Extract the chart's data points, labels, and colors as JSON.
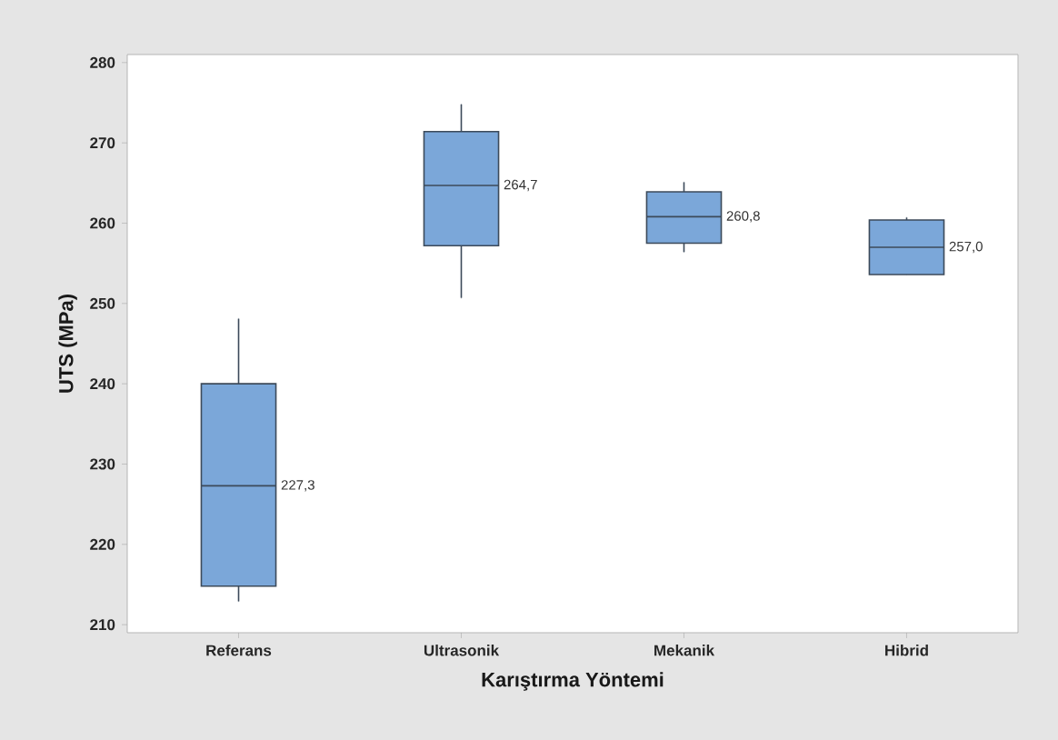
{
  "chart_data": {
    "type": "box",
    "xlabel": "Karıştırma Yöntemi",
    "ylabel": "UTS (MPa)",
    "categories": [
      "Referans",
      "Ultrasonik",
      "Mekanik",
      "Hibrid"
    ],
    "series": [
      {
        "color": "#7ba7d9",
        "boxes": [
          {
            "low": 212.9,
            "q1": 214.8,
            "median": 227.3,
            "q3": 240.0,
            "high": 248.1
          },
          {
            "low": 250.7,
            "q1": 257.2,
            "median": 264.7,
            "q3": 271.4,
            "high": 274.8
          },
          {
            "low": 256.4,
            "q1": 257.5,
            "median": 260.8,
            "q3": 263.9,
            "high": 265.1
          },
          {
            "low": 253.6,
            "q1": 253.6,
            "median": 257.0,
            "q3": 260.4,
            "high": 260.7
          }
        ],
        "value_labels": [
          "227,3",
          "264,7",
          "260,8",
          "257,0"
        ]
      }
    ],
    "ylim": [
      209,
      281
    ],
    "yticks": [
      210,
      220,
      230,
      240,
      250,
      260,
      270,
      280
    ]
  }
}
